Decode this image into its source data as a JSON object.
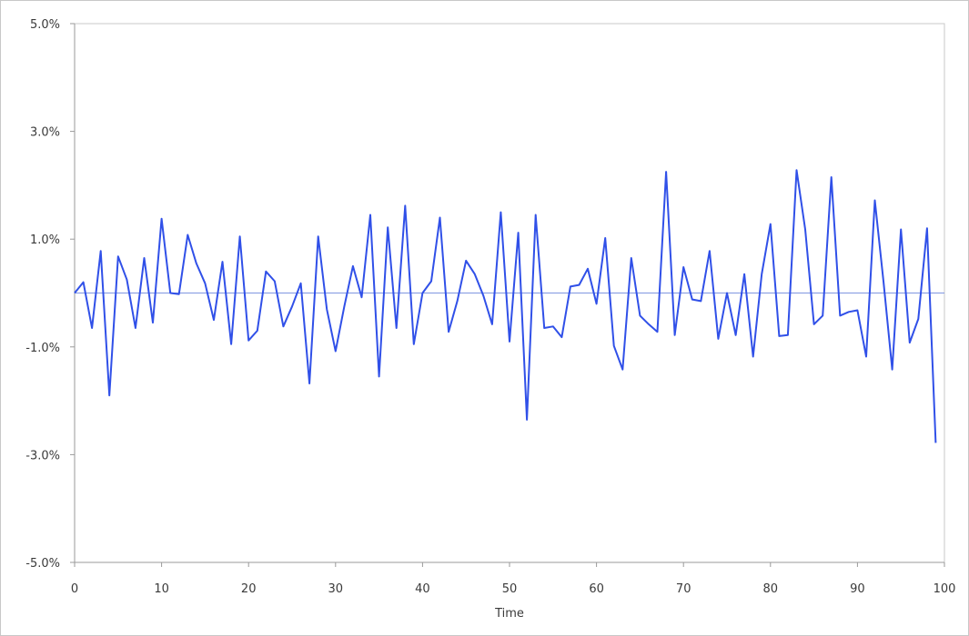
{
  "chart_data": {
    "type": "line",
    "title": "",
    "xlabel": "Time",
    "ylabel": "",
    "xlim": [
      0,
      100
    ],
    "ylim": [
      -0.05,
      0.05
    ],
    "x_ticks": [
      0,
      10,
      20,
      30,
      40,
      50,
      60,
      70,
      80,
      90,
      100
    ],
    "x_tick_labels": [
      "0",
      "10",
      "20",
      "30",
      "40",
      "50",
      "60",
      "70",
      "80",
      "90",
      "100"
    ],
    "y_ticks": [
      0.05,
      0.03,
      0.01,
      -0.01,
      -0.03,
      -0.05
    ],
    "y_tick_labels": [
      "5.0%",
      "3.0%",
      "1.0%",
      "-1.0%",
      "-3.0%",
      "-5.0%"
    ],
    "grid": false,
    "zero_line": true,
    "legend": "none",
    "colors": {
      "series": "#3050e8",
      "zero_line": "#8096e0",
      "axis": "#9a9a9a",
      "frame": "#c8c8c8"
    },
    "series": [
      {
        "x": [
          0,
          1,
          2,
          3,
          4,
          5,
          6,
          7,
          8,
          9,
          10,
          11,
          12,
          13,
          14,
          15,
          16,
          17,
          18,
          19,
          20,
          21,
          22,
          23,
          24,
          25,
          26,
          27,
          28,
          29,
          30,
          31,
          32,
          33,
          34,
          35,
          36,
          37,
          38,
          39,
          40,
          41,
          42,
          43,
          44,
          45,
          46,
          47,
          48,
          49,
          50,
          51,
          52,
          53,
          54,
          55,
          56,
          57,
          58,
          59,
          60,
          61,
          62,
          63,
          64,
          65,
          66,
          67,
          68,
          69,
          70,
          71,
          72,
          73,
          74,
          75,
          76,
          77,
          78,
          79,
          80,
          81,
          82,
          83,
          84,
          85,
          86,
          87,
          88,
          89,
          90,
          91,
          92,
          93,
          94,
          95,
          96,
          97,
          98,
          99
        ],
        "values": [
          0.0,
          0.002,
          -0.0065,
          0.0078,
          -0.019,
          0.0068,
          0.0025,
          -0.0065,
          0.0065,
          -0.0055,
          0.0138,
          0.0,
          -0.0002,
          0.0108,
          0.0055,
          0.0018,
          -0.005,
          0.0058,
          -0.0095,
          0.0105,
          -0.0088,
          -0.007,
          0.004,
          0.0022,
          -0.0062,
          -0.0025,
          0.0018,
          -0.0168,
          0.0105,
          -0.003,
          -0.0108,
          -0.0025,
          0.005,
          -0.0008,
          0.0145,
          -0.0155,
          0.0122,
          -0.0065,
          0.0162,
          -0.0095,
          0.0,
          0.0022,
          0.014,
          -0.0072,
          -0.0015,
          0.006,
          0.0035,
          -0.0005,
          -0.0058,
          0.015,
          -0.009,
          0.0112,
          -0.0235,
          0.0145,
          -0.0065,
          -0.0062,
          -0.0082,
          0.0012,
          0.0015,
          0.0045,
          -0.002,
          0.0102,
          -0.0098,
          -0.0142,
          0.0065,
          -0.0042,
          -0.0058,
          -0.0072,
          0.0225,
          -0.0078,
          0.0048,
          -0.0012,
          -0.0015,
          0.0078,
          -0.0085,
          0.0,
          -0.0078,
          0.0035,
          -0.0118,
          0.0035,
          0.0128,
          -0.008,
          -0.0078,
          0.0228,
          0.0118,
          -0.0058,
          -0.0042,
          0.0215,
          -0.0042,
          -0.0035,
          -0.0032,
          -0.0118,
          0.0172,
          0.002,
          -0.0142,
          0.0118,
          -0.0092,
          -0.0048,
          0.012,
          -0.0278
        ]
      }
    ]
  }
}
